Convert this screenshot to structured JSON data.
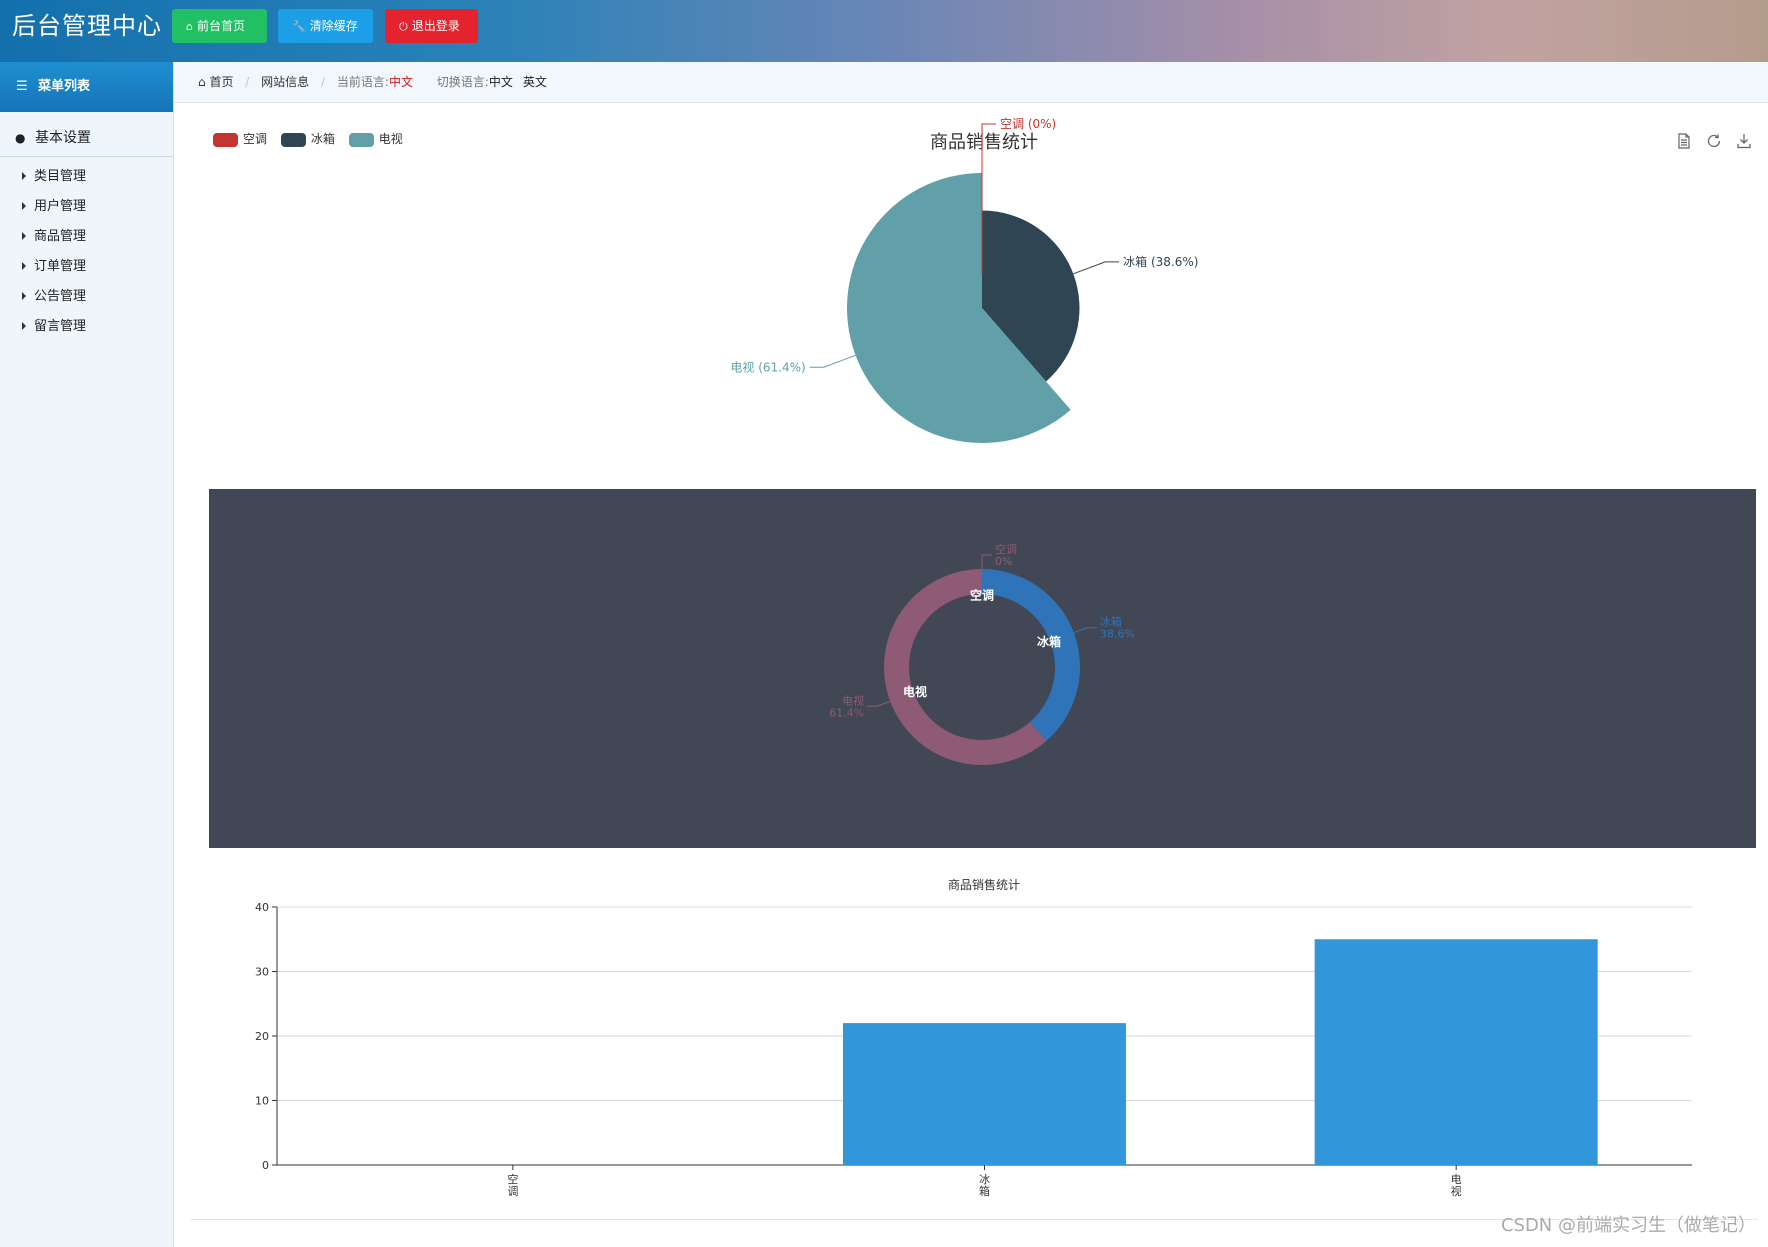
{
  "header": {
    "title": "后台管理中心",
    "buttons": {
      "home": "前台首页",
      "clear_cache": "清除缓存",
      "logout": "退出登录"
    },
    "colors": {
      "home": "#22c064",
      "clear_cache": "#1c9fe6",
      "logout": "#e4232e"
    }
  },
  "sidebar": {
    "menu_title": "菜单列表",
    "group_title": "基本设置",
    "items": [
      {
        "label": "类目管理"
      },
      {
        "label": "用户管理"
      },
      {
        "label": "商品管理"
      },
      {
        "label": "订单管理"
      },
      {
        "label": "公告管理"
      },
      {
        "label": "留言管理"
      }
    ]
  },
  "breadcrumb": {
    "home": "首页",
    "site_info": "网站信息",
    "current_lang_label": "当前语言:",
    "current_lang": "中文",
    "switch_label": "切换语言:",
    "lang_options": [
      "中文",
      "英文"
    ]
  },
  "icons": {
    "home": "home-icon",
    "wrench": "wrench-icon",
    "power": "power-icon",
    "list": "list-icon",
    "user": "user-icon",
    "data_view": "data-view-icon",
    "restore": "restore-icon",
    "save_image": "save-image-icon"
  },
  "chart_data": [
    {
      "type": "pie",
      "variant": "rose",
      "title": "商品销售统计",
      "legend_position": "top-left",
      "categories": [
        "空调",
        "冰箱",
        "电视"
      ],
      "values": [
        0,
        22,
        35
      ],
      "colors": [
        "#c23531",
        "#2f4554",
        "#61a0a8"
      ],
      "labels": [
        "空调 (0%)",
        "冰箱 (38.6%)",
        "电视 (61.4%)"
      ],
      "toolbox": [
        "data-view",
        "restore",
        "save-as-image"
      ]
    },
    {
      "type": "pie",
      "variant": "donut",
      "background": "#414755",
      "categories": [
        "空调",
        "冰箱",
        "电视"
      ],
      "values": [
        0,
        22,
        35
      ],
      "colors": [
        "#8e5a76",
        "#2f73b8",
        "#8e5a76"
      ],
      "outer_labels": [
        {
          "name": "空调",
          "pct": "0%"
        },
        {
          "name": "冰箱",
          "pct": "38.6%"
        },
        {
          "name": "电视",
          "pct": "61.4%"
        }
      ]
    },
    {
      "type": "bar",
      "title": "商品销售统计",
      "categories": [
        "空调",
        "冰箱",
        "电视"
      ],
      "values": [
        0,
        22,
        35
      ],
      "ylim": [
        0,
        40
      ],
      "yticks": [
        0,
        10,
        20,
        30,
        40
      ],
      "grid": true,
      "bar_color": "#3296db"
    }
  ],
  "watermark": "CSDN @前端实习生（做笔记）"
}
